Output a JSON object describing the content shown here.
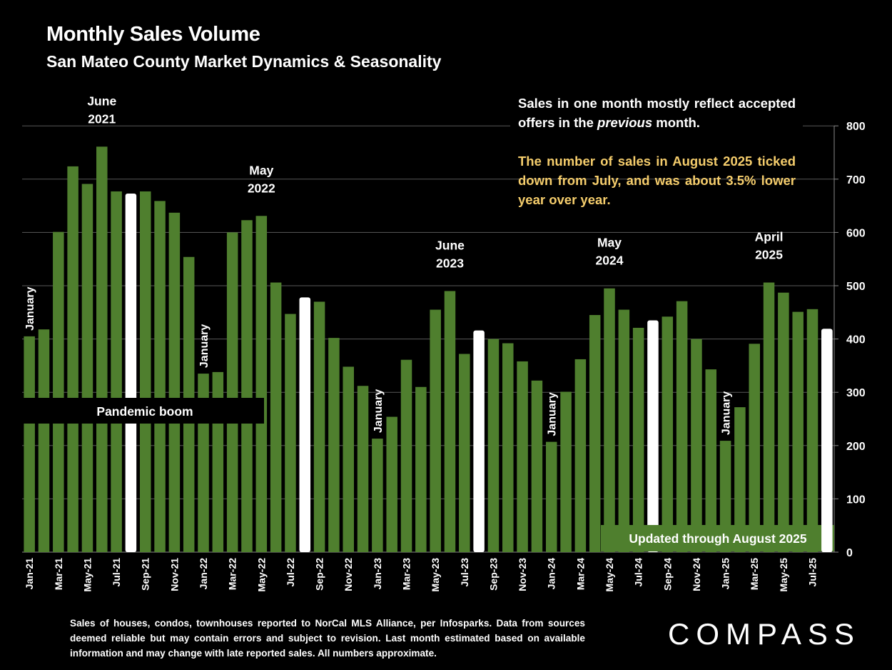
{
  "header": {
    "title": "Monthly Sales Volume",
    "subtitle": "San Mateo County Market Dynamics & Seasonality"
  },
  "notes": {
    "reflect_text_1": "Sales in one month mostly reflect accepted offers in the ",
    "reflect_italic": "previous",
    "reflect_text_2": " month.",
    "summary": "The number of sales in August 2025 ticked down from July, and was about 3.5% lower year over year."
  },
  "footnote": "Sales of houses, condos, townhouses reported to NorCal MLS Alliance, per Infosparks. Data from sources deemed reliable but may contain errors and subject to revision. Last month estimated based on available information and may change with late reported sales. All numbers approximate.",
  "logo": "COMPASS",
  "colors": {
    "bar": "#4f7f2e",
    "highlight": "#ffffff",
    "grid": "#595959",
    "yellow": "#f5cd6c"
  },
  "chart_data": {
    "type": "bar",
    "months": [
      "Jan-21",
      "Feb-21",
      "Mar-21",
      "Apr-21",
      "May-21",
      "Jun-21",
      "Jul-21",
      "Aug-21",
      "Sep-21",
      "Oct-21",
      "Nov-21",
      "Dec-21",
      "Jan-22",
      "Feb-22",
      "Mar-22",
      "Apr-22",
      "May-22",
      "Jun-22",
      "Jul-22",
      "Aug-22",
      "Sep-22",
      "Oct-22",
      "Nov-22",
      "Dec-22",
      "Jan-23",
      "Feb-23",
      "Mar-23",
      "Apr-23",
      "May-23",
      "Jun-23",
      "Jul-23",
      "Aug-23",
      "Sep-23",
      "Oct-23",
      "Nov-23",
      "Dec-23",
      "Jan-24",
      "Feb-24",
      "Mar-24",
      "Apr-24",
      "May-24",
      "Jun-24",
      "Jul-24",
      "Aug-24",
      "Sep-24",
      "Oct-24",
      "Nov-24",
      "Dec-24",
      "Jan-25",
      "Feb-25",
      "Mar-25",
      "Apr-25",
      "May-25",
      "Jun-25",
      "Jul-25",
      "Aug-25"
    ],
    "tick_labels": [
      "Jan-21",
      "Mar-21",
      "May-21",
      "Jul-21",
      "Sep-21",
      "Nov-21",
      "Jan-22",
      "Mar-22",
      "May-22",
      "Jul-22",
      "Sep-22",
      "Nov-22",
      "Jan-23",
      "Mar-23",
      "May-23",
      "Jul-23",
      "Sep-23",
      "Nov-23",
      "Jan-24",
      "Mar-24",
      "May-24",
      "Jul-24",
      "Sep-24",
      "Nov-24",
      "Jan-25",
      "Mar-25",
      "May-25",
      "Jul-25"
    ],
    "values": [
      405,
      418,
      601,
      724,
      691,
      761,
      677,
      673,
      677,
      659,
      637,
      554,
      335,
      338,
      600,
      623,
      631,
      506,
      447,
      478,
      470,
      402,
      348,
      312,
      213,
      254,
      361,
      310,
      455,
      490,
      372,
      416,
      400,
      392,
      358,
      322,
      207,
      301,
      362,
      445,
      495,
      455,
      421,
      435,
      442,
      471,
      400,
      343,
      209,
      272,
      391,
      506,
      487,
      451,
      456,
      419
    ],
    "highlight_months": [
      "Aug-21",
      "Aug-22",
      "Aug-23",
      "Aug-24",
      "Aug-25"
    ],
    "ylim": [
      0,
      800
    ],
    "yticks": [
      0,
      100,
      200,
      300,
      400,
      500,
      600,
      700,
      800
    ],
    "grid": true,
    "annotations": [
      {
        "month": "Jun-21",
        "lines": [
          "June",
          "2021"
        ]
      },
      {
        "month": "May-22",
        "lines": [
          "May",
          "2022"
        ]
      },
      {
        "month": "Jun-23",
        "lines": [
          "June",
          "2023"
        ]
      },
      {
        "month": "May-24",
        "lines": [
          "May",
          "2024"
        ]
      },
      {
        "month": "Apr-25",
        "lines": [
          "April",
          "2025"
        ]
      }
    ],
    "january_labels": [
      {
        "month": "Jan-21",
        "text": "January"
      },
      {
        "month": "Jan-22",
        "text": "January"
      },
      {
        "month": "Jan-23",
        "text": "January"
      },
      {
        "month": "Jan-24",
        "text": "January"
      },
      {
        "month": "Jan-25",
        "text": "January"
      }
    ],
    "pandemic_label": "Pandemic boom",
    "updated_label": "Updated through August 2025"
  }
}
